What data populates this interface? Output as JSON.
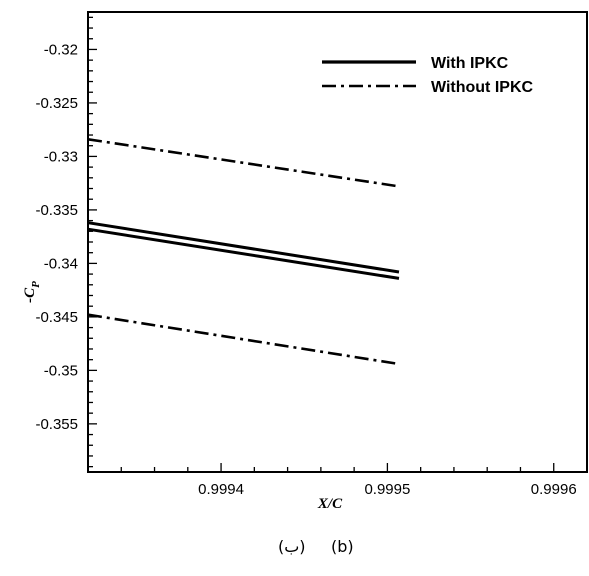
{
  "chart_data": {
    "type": "line",
    "xlabel": "X/C",
    "ylabel": "-C",
    "ylabel_subscript": "P",
    "xlim": [
      0.99932,
      0.99962
    ],
    "ylim": [
      -0.3595,
      -0.3165
    ],
    "x_ticks": [
      0.9994,
      0.9995,
      0.9996
    ],
    "x_tick_labels": [
      "0.9994",
      "0.9995",
      "0.9996"
    ],
    "y_ticks": [
      -0.32,
      -0.325,
      -0.33,
      -0.335,
      -0.34,
      -0.345,
      -0.35,
      -0.355
    ],
    "y_tick_labels": [
      "-0.32",
      "-0.325",
      "-0.33",
      "-0.335",
      "-0.34",
      "-0.345",
      "-0.35",
      "-0.355"
    ],
    "grid": false,
    "legend_position": "top-right",
    "legend": [
      {
        "label": "With IPKC",
        "style": "solid",
        "color": "#000000"
      },
      {
        "label": "Without IPKC",
        "style": "dash-dot",
        "color": "#000000"
      }
    ],
    "series": [
      {
        "group": "With IPKC",
        "style": "solid",
        "x": [
          0.99932,
          0.999507
        ],
        "y": [
          -0.3362,
          -0.3408
        ]
      },
      {
        "group": "With IPKC",
        "style": "solid",
        "x": [
          0.99932,
          0.999507
        ],
        "y": [
          -0.3368,
          -0.3414
        ]
      },
      {
        "group": "Without IPKC",
        "style": "dash-dot",
        "x": [
          0.99932,
          0.999507
        ],
        "y": [
          -0.3284,
          -0.3328
        ]
      },
      {
        "group": "Without IPKC",
        "style": "dash-dot",
        "x": [
          0.99932,
          0.999507
        ],
        "y": [
          -0.3448,
          -0.3494
        ]
      }
    ]
  },
  "caption": {
    "arabic": "(ب)",
    "latin": "(b)"
  }
}
